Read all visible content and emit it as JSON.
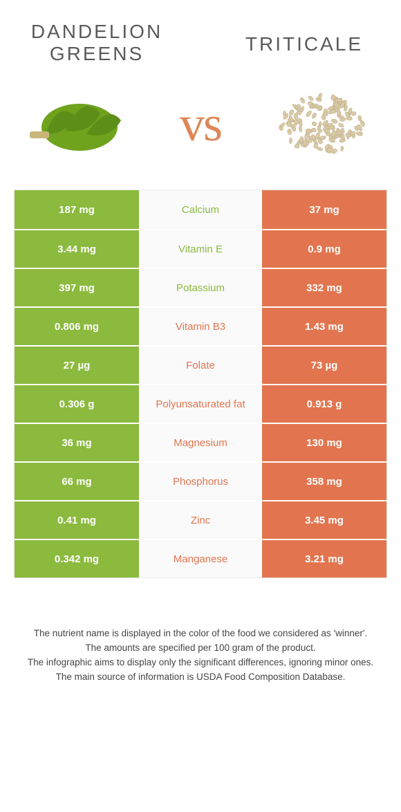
{
  "food_left": {
    "title": "Dandelion greens",
    "color": "#8bba3e"
  },
  "food_right": {
    "title": "Triticale",
    "color": "#e2754f"
  },
  "vs_label": "vs",
  "colors": {
    "green": "#8bba3e",
    "orange": "#e2754f",
    "mid_bg": "#fafafa",
    "border": "#e8e8e8",
    "title_gray": "#5a5a5a"
  },
  "rows": [
    {
      "left": "187 mg",
      "nutrient": "Calcium",
      "right": "37 mg",
      "winner": "left"
    },
    {
      "left": "3.44 mg",
      "nutrient": "Vitamin E",
      "right": "0.9 mg",
      "winner": "left"
    },
    {
      "left": "397 mg",
      "nutrient": "Potassium",
      "right": "332 mg",
      "winner": "left"
    },
    {
      "left": "0.806 mg",
      "nutrient": "Vitamin B3",
      "right": "1.43 mg",
      "winner": "right"
    },
    {
      "left": "27 µg",
      "nutrient": "Folate",
      "right": "73 µg",
      "winner": "right"
    },
    {
      "left": "0.306 g",
      "nutrient": "Polyunsaturated fat",
      "right": "0.913 g",
      "winner": "right"
    },
    {
      "left": "36 mg",
      "nutrient": "Magnesium",
      "right": "130 mg",
      "winner": "right"
    },
    {
      "left": "66 mg",
      "nutrient": "Phosphorus",
      "right": "358 mg",
      "winner": "right"
    },
    {
      "left": "0.41 mg",
      "nutrient": "Zinc",
      "right": "3.45 mg",
      "winner": "right"
    },
    {
      "left": "0.342 mg",
      "nutrient": "Manganese",
      "right": "3.21 mg",
      "winner": "right"
    }
  ],
  "footer": {
    "line1": "The nutrient name is displayed in the color of the food we considered as 'winner'.",
    "line2": "The amounts are specified per 100 gram of the product.",
    "line3": "The infographic aims to display only the significant differences, ignoring minor ones.",
    "line4": "The main source of information is USDA Food Composition Database."
  }
}
